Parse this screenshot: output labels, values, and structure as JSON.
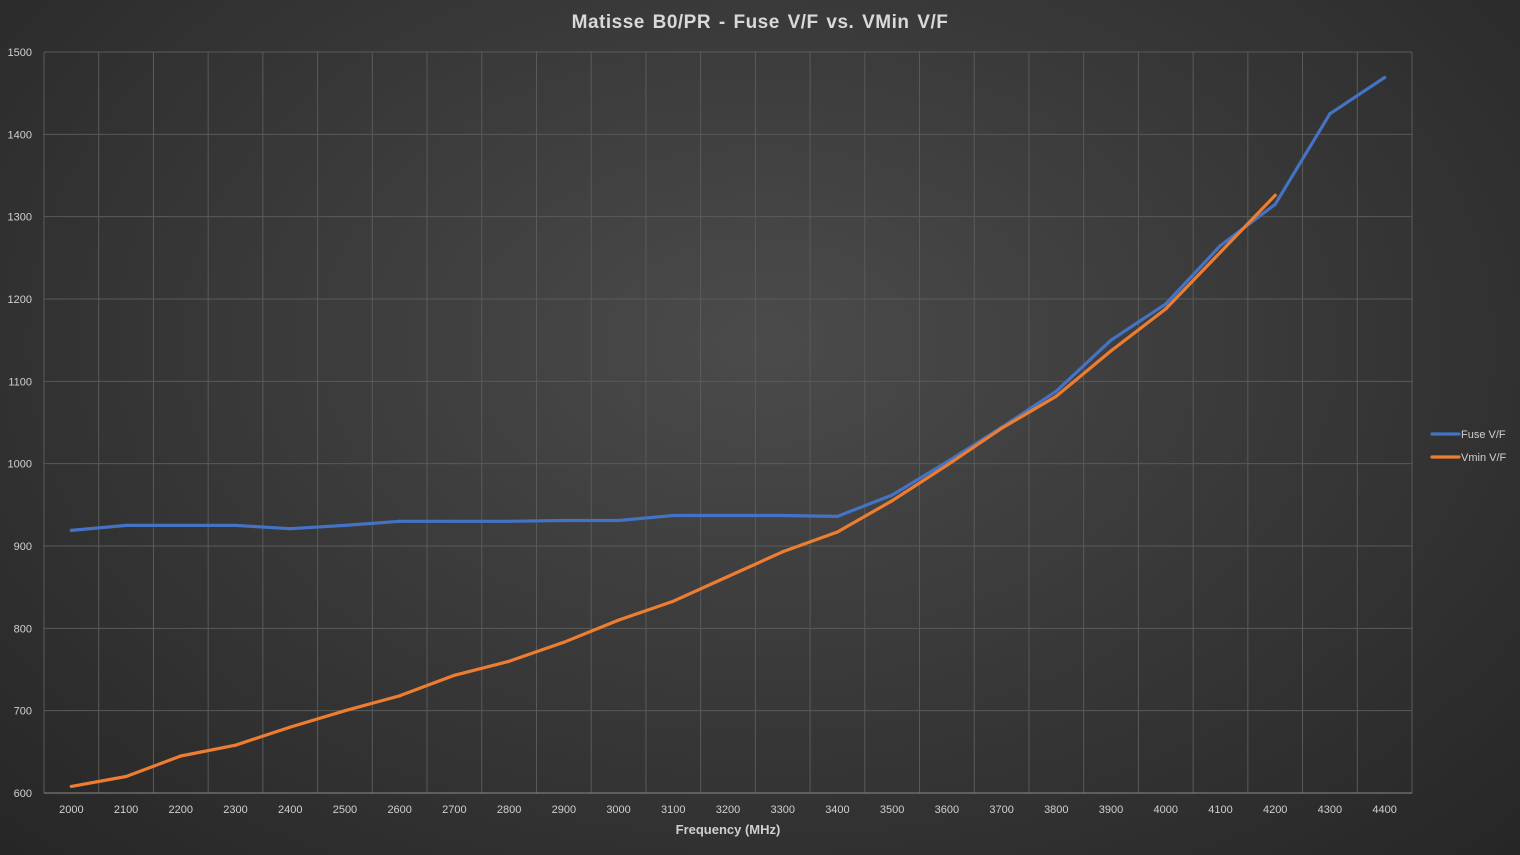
{
  "chart_data": {
    "type": "line",
    "title": "Matisse  B0/PR - Fuse V/F vs. VMin  V/F",
    "xlabel": "Frequency (MHz)",
    "ylabel": "",
    "x": [
      2000,
      2100,
      2200,
      2300,
      2400,
      2500,
      2600,
      2700,
      2800,
      2900,
      3000,
      3100,
      3200,
      3300,
      3400,
      3500,
      3600,
      3700,
      3800,
      3900,
      4000,
      4100,
      4200,
      4300,
      4400
    ],
    "x_tick_labels": [
      "2000",
      "2100",
      "2200",
      "2300",
      "2400",
      "2500",
      "2600",
      "2700",
      "2800",
      "2900",
      "3000",
      "3100",
      "3200",
      "3300",
      "3400",
      "3500",
      "3600",
      "3700",
      "3800",
      "3900",
      "4000",
      "4100",
      "4200",
      "4300",
      "4400"
    ],
    "ylim": [
      600,
      1500
    ],
    "y_tick_labels": [
      "600",
      "700",
      "800",
      "900",
      "1000",
      "1100",
      "1200",
      "1300",
      "1400",
      "1500"
    ],
    "y_ticks": [
      600,
      700,
      800,
      900,
      1000,
      1100,
      1200,
      1300,
      1400,
      1500
    ],
    "grid": true,
    "legend_position": "right",
    "series": [
      {
        "name": "Fuse V/F",
        "color": "#4472c4",
        "values": [
          919,
          925,
          925,
          925,
          921,
          925,
          930,
          930,
          930,
          931,
          931,
          937,
          937,
          937,
          936,
          962,
          1002,
          1044,
          1088,
          1150,
          1194,
          1265,
          1315,
          1425,
          1469
        ]
      },
      {
        "name": "Vmin V/F",
        "color": "#ed7d31",
        "values": [
          608,
          620,
          645,
          658,
          680,
          700,
          718,
          743,
          760,
          783,
          810,
          833,
          863,
          893,
          917,
          955,
          998,
          1043,
          1082,
          1137,
          1188,
          1257,
          1326,
          null,
          null
        ]
      }
    ]
  }
}
